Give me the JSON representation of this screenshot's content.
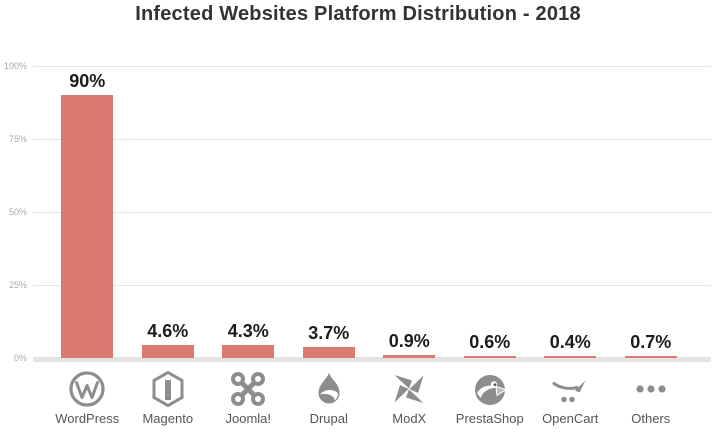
{
  "title": "Infected Websites Platform Distribution - 2018",
  "chart_data": {
    "type": "bar",
    "title": "Infected Websites Platform Distribution - 2018",
    "categories": [
      "WordPress",
      "Magento",
      "Joomla!",
      "Drupal",
      "ModX",
      "PrestaShop",
      "OpenCart",
      "Others"
    ],
    "values": [
      90,
      4.6,
      4.3,
      3.7,
      0.9,
      0.6,
      0.4,
      0.7
    ],
    "value_labels": [
      "90%",
      "4.6%",
      "4.3%",
      "3.7%",
      "0.9%",
      "0.6%",
      "0.4%",
      "0.7%"
    ],
    "icons": [
      "wordpress-icon",
      "magento-icon",
      "joomla-icon",
      "drupal-icon",
      "modx-icon",
      "prestashop-icon",
      "opencart-icon",
      "others-icon"
    ],
    "xlabel": "",
    "ylabel": "",
    "ylim": [
      0,
      100
    ],
    "yticks": [
      "100%",
      "75%",
      "50%",
      "25%",
      "0%"
    ],
    "grid": true,
    "legend": false
  },
  "colors": {
    "bar": "#db7b70",
    "gridline": "#e7e7e7",
    "baseline": "#e3e3e3",
    "icon": "#8d8d8d",
    "tick_label": "#a8a8a8",
    "category_label": "#555555",
    "value_label": "#1c1c1c",
    "title": "#333333",
    "background": "#ffffff"
  }
}
